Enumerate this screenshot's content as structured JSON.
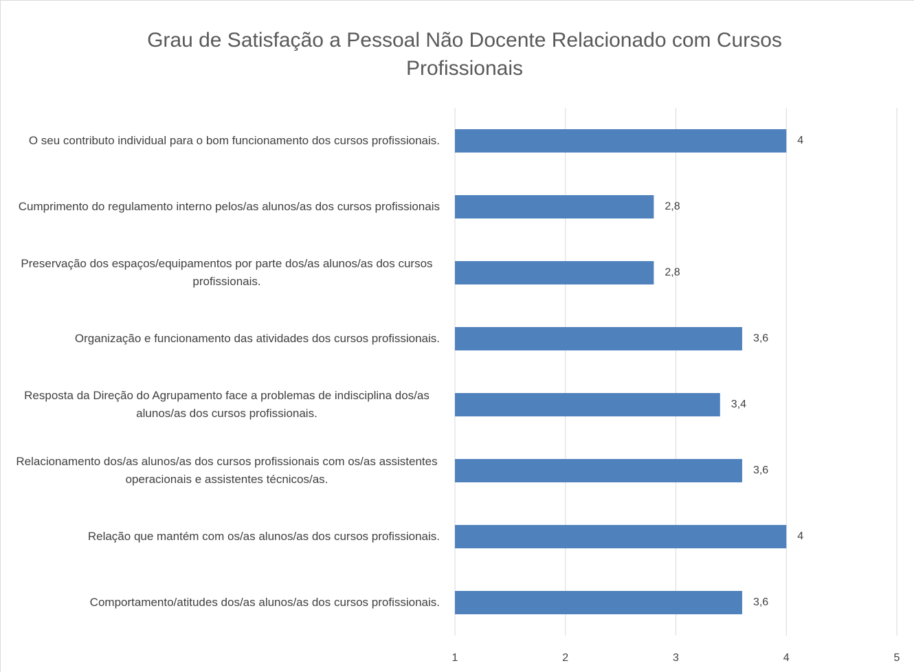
{
  "chart_data": {
    "type": "bar",
    "orientation": "horizontal",
    "title": "Grau de Satisfação a Pessoal Não Docente Relacionado com Cursos Profissionais",
    "categories": [
      "O seu contributo individual para o bom funcionamento dos cursos profissionais.",
      "Cumprimento do regulamento interno pelos/as alunos/as dos cursos profissionais",
      "Preservação dos espaços/equipamentos por parte dos/as alunos/as dos cursos profissionais.",
      "Organização e funcionamento das atividades dos cursos profissionais.",
      "Resposta da Direção do Agrupamento face a problemas de indisciplina dos/as alunos/as dos cursos profissionais.",
      "Relacionamento dos/as alunos/as dos cursos profissionais com os/as assistentes operacionais e assistentes técnicos/as.",
      "Relação que mantém com os/as alunos/as dos cursos profissionais.",
      "Comportamento/atitudes dos/as alunos/as dos cursos profissionais."
    ],
    "values": [
      4,
      2.8,
      2.8,
      3.6,
      3.4,
      3.6,
      4,
      3.6
    ],
    "value_labels": [
      "4",
      "2,8",
      "2,8",
      "3,6",
      "3,4",
      "3,6",
      "4",
      "3,6"
    ],
    "color": "#4f81bd",
    "xlim": [
      1,
      5
    ],
    "xticks": [
      1,
      2,
      3,
      4,
      5
    ],
    "grid": true
  }
}
